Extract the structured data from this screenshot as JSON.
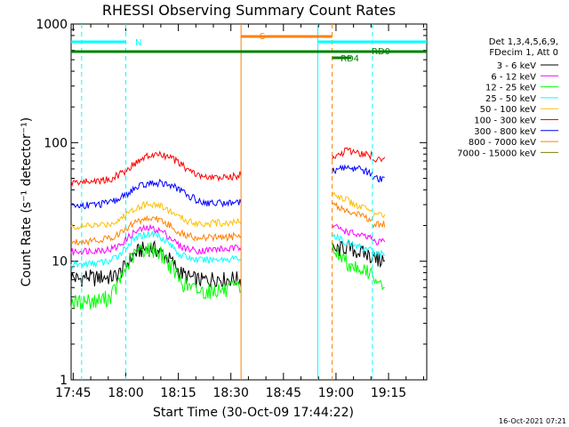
{
  "chart_data": {
    "type": "line",
    "title": "RHESSI Observing Summary Count Rates",
    "xlabel": "Start Time (30-Oct-09 17:44:22)",
    "ylabel": "Count Rate (s⁻¹ detector⁻¹)",
    "x_ticks": [
      "17:45",
      "18:00",
      "18:15",
      "18:30",
      "18:45",
      "19:00",
      "19:15"
    ],
    "x_tick_minutes": [
      0.6,
      15.6,
      30.6,
      45.6,
      60.6,
      75.6,
      90.6
    ],
    "x_range_minutes": [
      0,
      101.5
    ],
    "y_ticks": [
      "1",
      "10",
      "100",
      "1000"
    ],
    "y_range": [
      1,
      1000
    ],
    "y_scale": "log",
    "legend_header": [
      "Det 1,3,4,5,6,9,",
      "FDecim 1, Att 0"
    ],
    "legend_placement": "right",
    "series": [
      {
        "name": "3 - 6 keV",
        "color": "#000000",
        "values": [
          7.5,
          7.0,
          7.5,
          7.2,
          7.4,
          7.3,
          7.6,
          9.0,
          11.2,
          12.5,
          13.0,
          12.6,
          11.5,
          10.0,
          8.2,
          7.4,
          7.1,
          6.9,
          7.1,
          7.3,
          7.0,
          7.2,
          7.0,
          12.0,
          13.2,
          12.0,
          11.0,
          10.5
        ]
      },
      {
        "name": "6 - 12 keV",
        "color": "#ff00ff",
        "values": [
          12.0,
          12.2,
          12.3,
          12.4,
          12.5,
          12.6,
          13.2,
          15.0,
          17.2,
          18.5,
          19.0,
          18.6,
          17.5,
          15.5,
          13.5,
          12.8,
          12.4,
          12.3,
          12.5,
          12.7,
          12.6,
          12.8,
          13.0,
          20.0,
          18.0,
          16.5,
          15.5,
          14.5
        ]
      },
      {
        "name": "12 - 25 keV",
        "color": "#00ff00",
        "values": [
          4.6,
          4.5,
          4.7,
          4.6,
          4.8,
          5.0,
          6.2,
          8.5,
          11.0,
          12.5,
          12.8,
          12.5,
          11.0,
          9.0,
          7.0,
          6.2,
          5.8,
          5.6,
          5.7,
          5.8,
          5.6,
          5.9,
          6.0,
          13.0,
          10.0,
          8.8,
          7.8,
          6.8
        ]
      },
      {
        "name": "25 - 50 keV",
        "color": "#00ffff",
        "values": [
          9.2,
          9.4,
          9.5,
          9.6,
          9.8,
          10.0,
          11.0,
          13.0,
          15.0,
          16.5,
          17.0,
          16.8,
          15.5,
          13.5,
          11.5,
          10.8,
          10.4,
          10.2,
          10.3,
          10.5,
          10.4,
          10.6,
          10.5,
          17.0,
          14.5,
          13.2,
          12.3,
          11.5
        ]
      },
      {
        "name": "50 - 100 keV",
        "color": "#ffbf00",
        "values": [
          19.5,
          19.6,
          19.8,
          20.0,
          20.3,
          20.7,
          22.0,
          24.5,
          27.5,
          29.5,
          30.5,
          30.0,
          28.5,
          26.0,
          23.5,
          22.0,
          21.2,
          20.8,
          20.9,
          21.1,
          21.0,
          21.3,
          21.8,
          38.0,
          33.0,
          29.0,
          26.5,
          24.5
        ]
      },
      {
        "name": "100 - 300 keV",
        "color": "#ff0000",
        "values": [
          46.0,
          46.5,
          47.0,
          47.5,
          48.0,
          49.0,
          53.0,
          58.0,
          65.0,
          72.0,
          77.0,
          79.0,
          78.0,
          74.0,
          67.0,
          60.0,
          55.0,
          51.5,
          50.5,
          50.8,
          50.5,
          52.0,
          54.0,
          72.0,
          85.0,
          82.0,
          78.0,
          72.0
        ]
      },
      {
        "name": "300 - 800 keV",
        "color": "#0000ff",
        "values": [
          29.0,
          29.5,
          29.8,
          30.0,
          30.5,
          31.0,
          33.0,
          36.0,
          40.0,
          43.0,
          45.0,
          46.0,
          45.5,
          43.5,
          40.0,
          36.5,
          33.5,
          31.5,
          31.0,
          31.2,
          31.0,
          31.5,
          32.0,
          58.0,
          62.0,
          60.0,
          55.0,
          50.0
        ]
      },
      {
        "name": "800 - 7000 keV",
        "color": "#ff8000",
        "values": [
          14.5,
          14.7,
          14.8,
          15.0,
          15.3,
          15.7,
          16.8,
          18.5,
          20.8,
          22.3,
          23.0,
          22.8,
          21.5,
          19.5,
          17.5,
          16.5,
          16.0,
          15.7,
          15.8,
          16.0,
          15.9,
          16.2,
          16.5,
          30.0,
          27.0,
          24.5,
          22.5,
          20.5
        ]
      },
      {
        "name": "7000 - 15000 keV",
        "color": "#808000",
        "values": []
      }
    ],
    "segments_minutes": [
      [
        0,
        48.5
      ],
      [
        74.5,
        86
      ],
      [
        86,
        89.5
      ]
    ],
    "segment_sizes": [
      23,
      4,
      1
    ]
  },
  "flags": {
    "n_label": "N",
    "s_label": "S",
    "rd4_label": "RD4",
    "rd0_label": "RD0"
  },
  "footer": {
    "timestamp": "16-Oct-2021 07:21"
  }
}
